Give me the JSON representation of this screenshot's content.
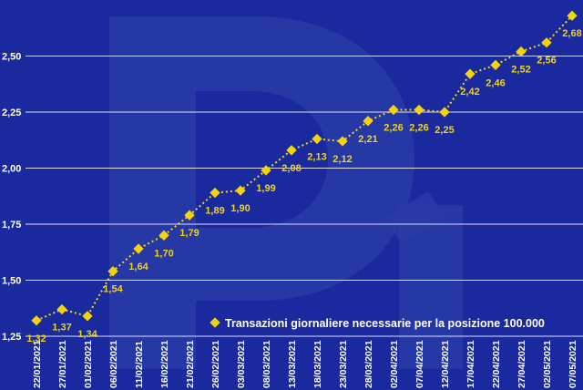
{
  "colors": {
    "background": "#1a2a9e",
    "line_marker": "#f2d40c",
    "gridline": "#ffffff",
    "text": "#ffffff",
    "watermark": "#2b3ca8"
  },
  "chart_data": {
    "type": "line",
    "title": "",
    "xlabel": "",
    "ylabel": "",
    "ylim": [
      1.25,
      2.75
    ],
    "yticks": [
      "1,25",
      "1,50",
      "1,75",
      "2,00",
      "2,25",
      "2,50"
    ],
    "grid": true,
    "legend_position": "bottom-right",
    "categories": [
      "22/01/2021",
      "27/01/2021",
      "01/02/2021",
      "06/02/2021",
      "11/02/2021",
      "16/02/2021",
      "21/02/2021",
      "26/02/2021",
      "03/03/2021",
      "08/03/2021",
      "13/03/2021",
      "18/03/2021",
      "23/03/2021",
      "28/03/2021",
      "02/04/2021",
      "07/04/2021",
      "12/04/2021",
      "17/04/2021",
      "22/04/2021",
      "27/04/2021",
      "02/05/2021",
      "07/05/2021"
    ],
    "series": [
      {
        "name": "Transazioni giornaliere necessarie per la posizione 100.000",
        "values": [
          1.32,
          1.37,
          1.34,
          1.54,
          1.64,
          1.7,
          1.79,
          1.89,
          1.9,
          1.99,
          2.08,
          2.13,
          2.12,
          2.21,
          2.26,
          2.26,
          2.25,
          2.42,
          2.46,
          2.52,
          2.56,
          2.68
        ],
        "labels": [
          "1,32",
          "1,37",
          "1,34",
          "1,54",
          "1,64",
          "1,70",
          "1,79",
          "1,89",
          "1,90",
          "1,99",
          "2,08",
          "2,13",
          "2,12",
          "2,21",
          "2,26",
          "2,26",
          "2,25",
          "2,42",
          "2,46",
          "2,52",
          "2,56",
          "2,68"
        ]
      }
    ]
  }
}
